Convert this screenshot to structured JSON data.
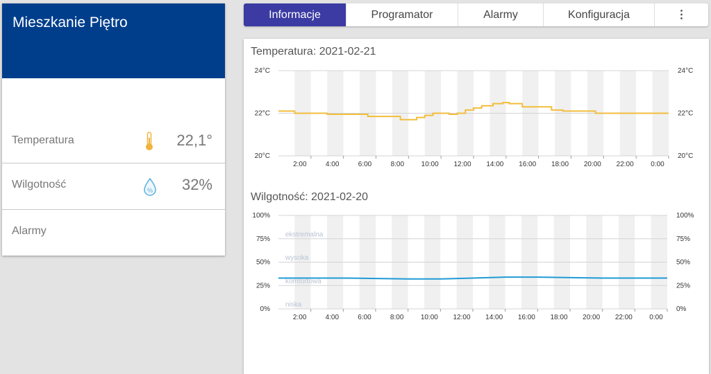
{
  "room": {
    "title": "Mieszkanie Piętro",
    "rows": [
      {
        "label": "Temperatura",
        "value": "22,1°",
        "icon": "thermometer-icon"
      },
      {
        "label": "Wilgotność",
        "value": "32%",
        "icon": "humidity-drop-icon"
      },
      {
        "label": "Alarmy",
        "value": ""
      }
    ]
  },
  "tabs": [
    {
      "label": "Informacje",
      "active": true
    },
    {
      "label": "Programator",
      "active": false
    },
    {
      "label": "Alarmy",
      "active": false
    },
    {
      "label": "Konfiguracja",
      "active": false
    },
    {
      "label": "⋮",
      "active": false
    }
  ],
  "colors": {
    "header": "#003e8c",
    "active_tab": "#3b3ba3",
    "temperature_line": "#f2bd3c",
    "humidity_line": "#1e9ad6"
  },
  "chart_data": [
    {
      "type": "line",
      "title": "Temperatura: 2021-02-21",
      "x_ticks": [
        "2:00",
        "4:00",
        "6:00",
        "8:00",
        "10:00",
        "12:00",
        "14:00",
        "16:00",
        "18:00",
        "20:00",
        "22:00",
        "0:00"
      ],
      "y_ticks": [
        "24°C",
        "22°C",
        "20°C"
      ],
      "ylim": [
        20,
        24
      ],
      "xlim_hours": [
        0,
        24
      ],
      "series": [
        {
          "x": [
            0,
            1,
            3,
            5.5,
            7.5,
            8.5,
            9.0,
            9.5,
            10.5,
            11.0,
            11.5,
            12.0,
            12.5,
            13.2,
            13.8,
            14.2,
            15.0,
            16.8,
            17.5,
            19.5,
            24
          ],
          "y": [
            22.1,
            22.0,
            21.95,
            21.85,
            21.7,
            21.8,
            21.9,
            22.0,
            21.95,
            22.0,
            22.15,
            22.25,
            22.35,
            22.45,
            22.5,
            22.45,
            22.3,
            22.15,
            22.1,
            22.0,
            22.0
          ]
        }
      ]
    },
    {
      "type": "line",
      "title": "Wilgotność: 2021-02-20",
      "x_ticks": [
        "2:00",
        "4:00",
        "6:00",
        "8:00",
        "10:00",
        "12:00",
        "14:00",
        "16:00",
        "18:00",
        "20:00",
        "22:00",
        "0:00"
      ],
      "y_ticks": [
        "100%",
        "75%",
        "50%",
        "25%",
        "0%"
      ],
      "ylim": [
        0,
        100
      ],
      "xlim_hours": [
        0,
        24
      ],
      "bands": [
        "ekstremalna",
        "wysoka",
        "komfortowa",
        "niska"
      ],
      "series": [
        {
          "x": [
            0,
            4,
            8,
            10,
            12,
            14,
            16,
            20,
            24
          ],
          "y": [
            33,
            33,
            32,
            32,
            33,
            34,
            34,
            33,
            33
          ]
        }
      ]
    }
  ]
}
